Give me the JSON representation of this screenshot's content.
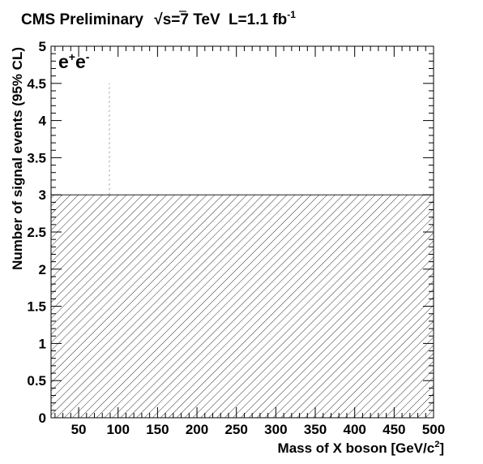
{
  "chart_data": {
    "type": "area",
    "title": {
      "experiment": "CMS Preliminary",
      "sqrt_symbol": "√",
      "energy": "s=7 TeV",
      "lumi_prefix": "L=1.1 fb",
      "lumi_exponent": "-1"
    },
    "channel_label": {
      "base1": "e",
      "sup1": "+",
      "base2": "e",
      "sup2": "-"
    },
    "xlabel": {
      "text": "Mass of X boson [GeV/c",
      "sup": "2",
      "tail": "]"
    },
    "ylabel": "Number of signal events (95% CL)",
    "xlim": [
      15,
      500
    ],
    "ylim": [
      0,
      5
    ],
    "x_tick_labels": [
      "50",
      "100",
      "150",
      "200",
      "250",
      "300",
      "350",
      "400",
      "450",
      "500"
    ],
    "y_tick_labels": [
      "0",
      "0.5",
      "1",
      "1.5",
      "2",
      "2.5",
      "3",
      "3.5",
      "4",
      "4.5",
      "5"
    ],
    "x_major_ticks": [
      50,
      100,
      150,
      200,
      250,
      300,
      350,
      400,
      450,
      500
    ],
    "y_major_ticks": [
      0,
      0.5,
      1,
      1.5,
      2,
      2.5,
      3,
      3.5,
      4,
      4.5,
      5
    ],
    "grid": false,
    "fill": "hatched",
    "series": [
      {
        "x": [
          15,
          88,
          88,
          90,
          90,
          500
        ],
        "y": [
          3.0,
          3.0,
          4.5,
          4.5,
          3.0,
          3.0
        ]
      }
    ]
  }
}
